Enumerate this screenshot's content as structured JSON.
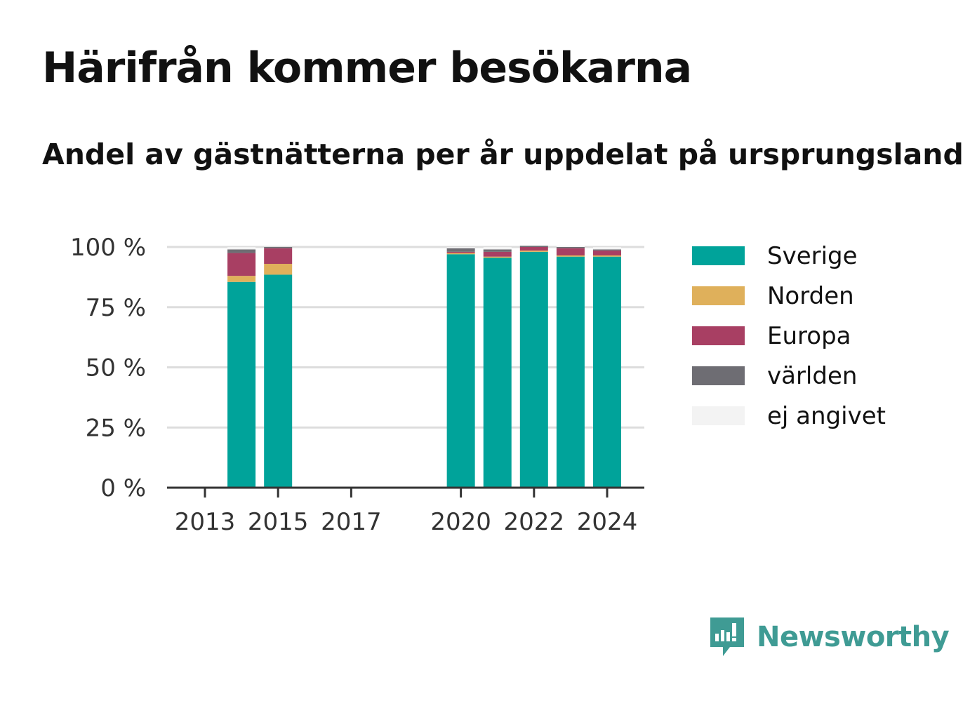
{
  "title": "Härifrån kommer besökarna",
  "subtitle": "Andel av gästnätterna per år uppdelat på ursprungsland",
  "brand": {
    "name": "Newsworthy",
    "logo_icon": "newsworthy-chart-bubble-icon"
  },
  "colors": {
    "grid": "#dddddd",
    "axis": "#333333",
    "text": "#111111",
    "brand": "#3f9b94"
  },
  "chart_data": {
    "type": "bar",
    "stacked": true,
    "x": [
      2013,
      2014,
      2015,
      2016,
      2017,
      2018,
      2019,
      2020,
      2021,
      2022,
      2023,
      2024
    ],
    "x_ticks": [
      "2013",
      "2015",
      "2017",
      "2020",
      "2022",
      "2024"
    ],
    "y_ticks": [
      "0 %",
      "25 %",
      "50 %",
      "75 %",
      "100 %"
    ],
    "ylim": [
      0,
      100
    ],
    "grid": true,
    "legend_position": "right",
    "series": [
      {
        "name": "Sverige",
        "color": "#00a39a",
        "values": [
          null,
          85.5,
          88.5,
          null,
          null,
          null,
          null,
          97.0,
          95.5,
          98.0,
          96.0,
          96.0
        ]
      },
      {
        "name": "Norden",
        "color": "#dfb05b",
        "values": [
          null,
          2.5,
          4.5,
          null,
          null,
          null,
          null,
          0.5,
          0.5,
          0.5,
          0.5,
          0.5
        ]
      },
      {
        "name": "Europa",
        "color": "#a83f63",
        "values": [
          null,
          9.5,
          6.5,
          null,
          null,
          null,
          null,
          0.5,
          2.0,
          1.5,
          3.0,
          2.0
        ]
      },
      {
        "name": "världen",
        "color": "#6e6d73",
        "values": [
          null,
          1.5,
          0.5,
          null,
          null,
          null,
          null,
          1.5,
          1.0,
          0.5,
          0.5,
          0.5
        ]
      },
      {
        "name": "ej angivet",
        "color": "#f3f3f3",
        "values": [
          null,
          1.0,
          0.0,
          null,
          null,
          null,
          null,
          0.5,
          1.0,
          0.0,
          0.5,
          1.0
        ]
      }
    ]
  }
}
